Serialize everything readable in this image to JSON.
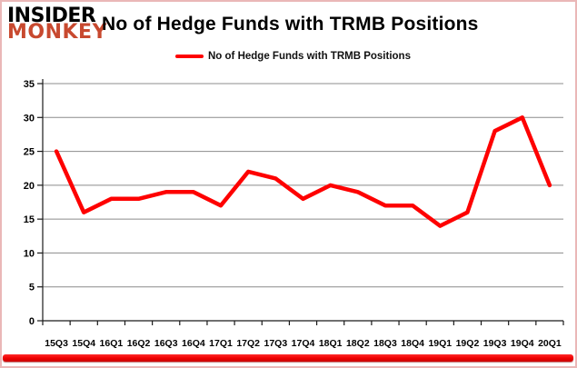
{
  "brand": {
    "line1": "INSIDER",
    "line2": "MONKEY",
    "monkey_color": "#c8492f"
  },
  "header": {
    "title": "No of Hedge Funds with TRMB Positions"
  },
  "legend": {
    "label": "No of Hedge Funds with TRMB Positions",
    "line_color": "#fe0000"
  },
  "chart_data": {
    "type": "line",
    "title": "No of Hedge Funds with TRMB Positions",
    "categories": [
      "15Q3",
      "15Q4",
      "16Q1",
      "16Q2",
      "16Q3",
      "16Q4",
      "17Q1",
      "17Q2",
      "17Q3",
      "17Q4",
      "18Q1",
      "18Q2",
      "18Q3",
      "18Q4",
      "19Q1",
      "19Q2",
      "19Q3",
      "19Q4",
      "20Q1"
    ],
    "series": [
      {
        "name": "No of Hedge Funds with TRMB Positions",
        "color": "#fe0000",
        "values": [
          25,
          16,
          18,
          18,
          19,
          19,
          17,
          22,
          21,
          18,
          20,
          19,
          17,
          17,
          14,
          16,
          28,
          30,
          20
        ]
      }
    ],
    "xlabel": "",
    "ylabel": "",
    "ylim": [
      0,
      35
    ],
    "yticks": [
      0,
      5,
      10,
      15,
      20,
      25,
      30,
      35
    ],
    "grid": "horizontal",
    "grid_color": "#8c8c8c",
    "axis_color": "#1a1a1a",
    "legend_position": "top-center"
  },
  "accent": {
    "bottom_bar_color": "#ee0000",
    "frame_border_color": "#eab7b7"
  }
}
